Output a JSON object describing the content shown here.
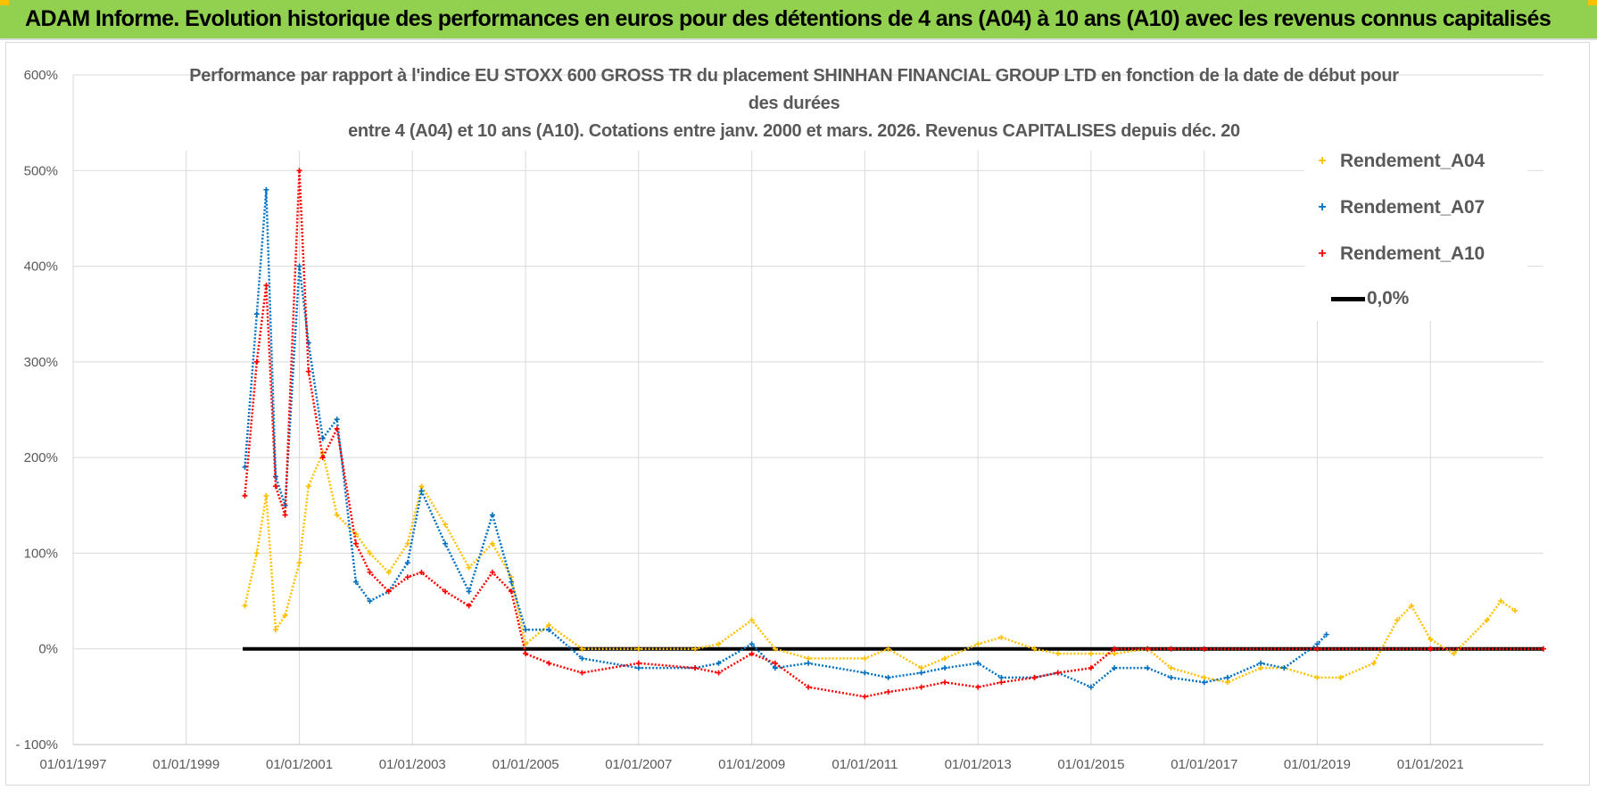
{
  "header": {
    "title": "ADAM Informe. Evolution historique des performances en euros pour des détentions de 4 ans (A04) à 10 ans (A10) avec les revenus connus capitalisés"
  },
  "chart_data": {
    "type": "scatter",
    "title_lines": [
      "Performance par rapport à l'indice EU STOXX 600 GROSS TR  du placement SHINHAN FINANCIAL GROUP LTD en fonction de la date de début pour",
      "des durées",
      "entre 4 (A04) et 10 ans (A10).  Cotations entre janv. 2000 et mars. 2026. Revenus CAPITALISES depuis déc. 20"
    ],
    "xlabel": "",
    "ylabel": "",
    "x_ticks": [
      "01/01/1997",
      "01/01/1999",
      "01/01/2001",
      "01/01/2003",
      "01/01/2005",
      "01/01/2007",
      "01/01/2009",
      "01/01/2011",
      "01/01/2013",
      "01/01/2015",
      "01/01/2017",
      "01/01/2019",
      "01/01/2021"
    ],
    "y_ticks": [
      "600%",
      "500%",
      "400%",
      "300%",
      "200%",
      "100%",
      "0%",
      "- 100%"
    ],
    "xlim": [
      "1997-01-01",
      "2023-01-01"
    ],
    "ylim": [
      -100,
      600
    ],
    "grid": true,
    "legend_position": "top-right",
    "colors": {
      "A04": "#ffc000",
      "A07": "#0070c0",
      "A10": "#ff0000",
      "zero": "#000000"
    },
    "series": [
      {
        "name": "Rendement_A04",
        "color": "#ffc000",
        "points": [
          [
            "2000-01-15",
            45
          ],
          [
            "2000-04-01",
            100
          ],
          [
            "2000-06-01",
            160
          ],
          [
            "2000-08-01",
            20
          ],
          [
            "2000-10-01",
            35
          ],
          [
            "2001-01-01",
            90
          ],
          [
            "2001-03-01",
            170
          ],
          [
            "2001-06-01",
            205
          ],
          [
            "2001-09-01",
            140
          ],
          [
            "2002-01-01",
            120
          ],
          [
            "2002-04-01",
            100
          ],
          [
            "2002-08-01",
            80
          ],
          [
            "2002-12-01",
            110
          ],
          [
            "2003-03-01",
            170
          ],
          [
            "2003-08-01",
            130
          ],
          [
            "2004-01-01",
            85
          ],
          [
            "2004-06-01",
            110
          ],
          [
            "2004-10-01",
            75
          ],
          [
            "2005-01-01",
            5
          ],
          [
            "2005-06-01",
            25
          ],
          [
            "2006-01-01",
            0
          ],
          [
            "2007-01-01",
            0
          ],
          [
            "2008-01-01",
            0
          ],
          [
            "2008-06-01",
            5
          ],
          [
            "2009-01-01",
            30
          ],
          [
            "2009-06-01",
            0
          ],
          [
            "2010-01-01",
            -10
          ],
          [
            "2011-01-01",
            -10
          ],
          [
            "2011-06-01",
            0
          ],
          [
            "2012-01-01",
            -20
          ],
          [
            "2012-06-01",
            -10
          ],
          [
            "2013-01-01",
            5
          ],
          [
            "2013-06-01",
            12
          ],
          [
            "2014-01-01",
            0
          ],
          [
            "2014-06-01",
            -5
          ],
          [
            "2015-01-01",
            -5
          ],
          [
            "2015-06-01",
            -5
          ],
          [
            "2016-01-01",
            0
          ],
          [
            "2016-06-01",
            -20
          ],
          [
            "2017-01-01",
            -30
          ],
          [
            "2017-06-01",
            -35
          ],
          [
            "2018-01-01",
            -20
          ],
          [
            "2018-06-01",
            -20
          ],
          [
            "2019-01-01",
            -30
          ],
          [
            "2019-06-01",
            -30
          ],
          [
            "2020-01-01",
            -15
          ],
          [
            "2020-06-01",
            30
          ],
          [
            "2020-09-01",
            45
          ],
          [
            "2021-01-01",
            10
          ],
          [
            "2021-06-01",
            -5
          ],
          [
            "2022-01-01",
            30
          ],
          [
            "2022-04-01",
            50
          ],
          [
            "2022-07-01",
            40
          ]
        ]
      },
      {
        "name": "Rendement_A07",
        "color": "#0070c0",
        "points": [
          [
            "2000-01-15",
            190
          ],
          [
            "2000-04-01",
            350
          ],
          [
            "2000-06-01",
            480
          ],
          [
            "2000-08-01",
            180
          ],
          [
            "2000-10-01",
            150
          ],
          [
            "2001-01-01",
            400
          ],
          [
            "2001-03-01",
            320
          ],
          [
            "2001-06-01",
            220
          ],
          [
            "2001-09-01",
            240
          ],
          [
            "2002-01-01",
            70
          ],
          [
            "2002-04-01",
            50
          ],
          [
            "2002-08-01",
            60
          ],
          [
            "2002-12-01",
            90
          ],
          [
            "2003-03-01",
            165
          ],
          [
            "2003-08-01",
            110
          ],
          [
            "2004-01-01",
            60
          ],
          [
            "2004-06-01",
            140
          ],
          [
            "2004-10-01",
            70
          ],
          [
            "2005-01-01",
            20
          ],
          [
            "2005-06-01",
            20
          ],
          [
            "2006-01-01",
            -10
          ],
          [
            "2007-01-01",
            -20
          ],
          [
            "2008-01-01",
            -20
          ],
          [
            "2008-06-01",
            -15
          ],
          [
            "2009-01-01",
            5
          ],
          [
            "2009-06-01",
            -20
          ],
          [
            "2010-01-01",
            -15
          ],
          [
            "2011-01-01",
            -25
          ],
          [
            "2011-06-01",
            -30
          ],
          [
            "2012-01-01",
            -25
          ],
          [
            "2012-06-01",
            -20
          ],
          [
            "2013-01-01",
            -15
          ],
          [
            "2013-06-01",
            -30
          ],
          [
            "2014-01-01",
            -30
          ],
          [
            "2014-06-01",
            -25
          ],
          [
            "2015-01-01",
            -40
          ],
          [
            "2015-06-01",
            -20
          ],
          [
            "2016-01-01",
            -20
          ],
          [
            "2016-06-01",
            -30
          ],
          [
            "2017-01-01",
            -35
          ],
          [
            "2017-06-01",
            -30
          ],
          [
            "2018-01-01",
            -15
          ],
          [
            "2018-06-01",
            -20
          ],
          [
            "2019-01-01",
            5
          ],
          [
            "2019-03-01",
            15
          ]
        ]
      },
      {
        "name": "Rendement_A10",
        "color": "#ff0000",
        "points": [
          [
            "2000-01-15",
            160
          ],
          [
            "2000-04-01",
            300
          ],
          [
            "2000-06-01",
            380
          ],
          [
            "2000-08-01",
            170
          ],
          [
            "2000-10-01",
            140
          ],
          [
            "2001-01-01",
            500
          ],
          [
            "2001-03-01",
            290
          ],
          [
            "2001-06-01",
            200
          ],
          [
            "2001-09-01",
            230
          ],
          [
            "2002-01-01",
            110
          ],
          [
            "2002-04-01",
            80
          ],
          [
            "2002-08-01",
            60
          ],
          [
            "2002-12-01",
            75
          ],
          [
            "2003-03-01",
            80
          ],
          [
            "2003-08-01",
            60
          ],
          [
            "2004-01-01",
            45
          ],
          [
            "2004-06-01",
            80
          ],
          [
            "2004-10-01",
            60
          ],
          [
            "2005-01-01",
            -5
          ],
          [
            "2005-06-01",
            -15
          ],
          [
            "2006-01-01",
            -25
          ],
          [
            "2007-01-01",
            -15
          ],
          [
            "2008-01-01",
            -20
          ],
          [
            "2008-06-01",
            -25
          ],
          [
            "2009-01-01",
            -5
          ],
          [
            "2009-06-01",
            -15
          ],
          [
            "2010-01-01",
            -40
          ],
          [
            "2011-01-01",
            -50
          ],
          [
            "2011-06-01",
            -45
          ],
          [
            "2012-01-01",
            -40
          ],
          [
            "2012-06-01",
            -35
          ],
          [
            "2013-01-01",
            -40
          ],
          [
            "2013-06-01",
            -35
          ],
          [
            "2014-01-01",
            -30
          ],
          [
            "2014-06-01",
            -25
          ],
          [
            "2015-01-01",
            -20
          ],
          [
            "2015-06-01",
            0
          ],
          [
            "2016-01-01",
            0
          ],
          [
            "2016-06-01",
            0
          ],
          [
            "2017-01-01",
            0
          ],
          [
            "2019-01-01",
            0
          ],
          [
            "2021-01-01",
            0
          ],
          [
            "2023-01-01",
            0
          ]
        ]
      }
    ],
    "zero_line": {
      "name": "0,0%",
      "y": 0,
      "x_range": [
        "2000-01-01",
        "2023-01-01"
      ]
    }
  }
}
